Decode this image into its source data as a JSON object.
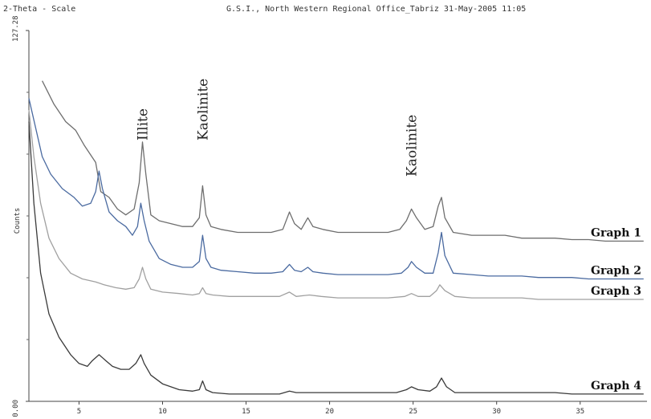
{
  "header": {
    "left": "2-Theta - Scale",
    "right": "G.S.I., North Western Regional Office_Tabriz 31-May-2005 11:05"
  },
  "chart_data": {
    "type": "line",
    "title": "",
    "xlabel": "2-Theta - Scale",
    "ylabel": "Counts",
    "xlim": [
      2,
      39
    ],
    "ylim": [
      0,
      127.28
    ],
    "xticks": [
      5,
      10,
      15,
      20,
      25,
      30,
      35
    ],
    "yticks": [
      {
        "value": 127.28,
        "label": "127.28"
      },
      {
        "value": 0,
        "label": "0.00"
      }
    ],
    "grid": false,
    "annotations": [
      {
        "text": "Illite",
        "x": 8.8
      },
      {
        "text": "Kaolinite",
        "x": 12.4
      },
      {
        "text": "Kaolinite",
        "x": 24.9
      }
    ],
    "series": [
      {
        "name": "Graph 1",
        "color": "#6e6e6e",
        "points": [
          [
            2.8,
            110
          ],
          [
            3.5,
            102
          ],
          [
            4.2,
            96
          ],
          [
            4.8,
            93
          ],
          [
            5.3,
            88
          ],
          [
            6.0,
            82
          ],
          [
            6.3,
            72
          ],
          [
            6.8,
            70
          ],
          [
            7.3,
            66
          ],
          [
            7.8,
            64
          ],
          [
            8.3,
            66
          ],
          [
            8.6,
            75
          ],
          [
            8.8,
            89
          ],
          [
            9.0,
            78
          ],
          [
            9.3,
            64
          ],
          [
            9.8,
            62
          ],
          [
            10.5,
            61
          ],
          [
            11.2,
            60
          ],
          [
            11.8,
            60
          ],
          [
            12.2,
            63
          ],
          [
            12.4,
            74
          ],
          [
            12.6,
            64
          ],
          [
            12.9,
            60
          ],
          [
            13.5,
            59
          ],
          [
            14.5,
            58
          ],
          [
            15.5,
            58
          ],
          [
            16.5,
            58
          ],
          [
            17.2,
            59
          ],
          [
            17.6,
            65
          ],
          [
            17.9,
            61
          ],
          [
            18.3,
            59
          ],
          [
            18.7,
            63
          ],
          [
            19.0,
            60
          ],
          [
            19.6,
            59
          ],
          [
            20.5,
            58
          ],
          [
            21.5,
            58
          ],
          [
            22.5,
            58
          ],
          [
            23.5,
            58
          ],
          [
            24.2,
            59
          ],
          [
            24.6,
            62
          ],
          [
            24.9,
            66
          ],
          [
            25.2,
            63
          ],
          [
            25.7,
            59
          ],
          [
            26.2,
            60
          ],
          [
            26.5,
            67
          ],
          [
            26.7,
            70
          ],
          [
            26.9,
            63
          ],
          [
            27.4,
            58
          ],
          [
            28.5,
            57
          ],
          [
            29.5,
            57
          ],
          [
            30.5,
            57
          ],
          [
            31.5,
            56
          ],
          [
            32.5,
            56
          ],
          [
            33.5,
            56
          ],
          [
            34.5,
            55.5
          ],
          [
            35.5,
            55.5
          ],
          [
            36.5,
            55
          ],
          [
            37.5,
            55
          ],
          [
            38.8,
            55
          ]
        ]
      },
      {
        "name": "Graph 2",
        "color": "#4a6aa0",
        "points": [
          [
            2.0,
            104
          ],
          [
            2.4,
            94
          ],
          [
            2.8,
            84
          ],
          [
            3.3,
            78
          ],
          [
            4.0,
            73
          ],
          [
            4.7,
            70
          ],
          [
            5.2,
            67
          ],
          [
            5.7,
            68
          ],
          [
            6.0,
            72
          ],
          [
            6.2,
            79
          ],
          [
            6.4,
            73
          ],
          [
            6.8,
            65
          ],
          [
            7.3,
            62
          ],
          [
            7.8,
            60
          ],
          [
            8.2,
            57
          ],
          [
            8.5,
            60
          ],
          [
            8.7,
            68
          ],
          [
            8.9,
            62
          ],
          [
            9.2,
            55
          ],
          [
            9.8,
            49
          ],
          [
            10.5,
            47
          ],
          [
            11.2,
            46
          ],
          [
            11.8,
            46
          ],
          [
            12.2,
            48
          ],
          [
            12.4,
            57
          ],
          [
            12.6,
            49
          ],
          [
            12.9,
            46
          ],
          [
            13.5,
            45
          ],
          [
            14.5,
            44.5
          ],
          [
            15.5,
            44
          ],
          [
            16.5,
            44
          ],
          [
            17.2,
            44.5
          ],
          [
            17.6,
            47
          ],
          [
            17.9,
            45
          ],
          [
            18.3,
            44.5
          ],
          [
            18.7,
            46
          ],
          [
            19.0,
            44.5
          ],
          [
            19.6,
            44
          ],
          [
            20.5,
            43.5
          ],
          [
            21.5,
            43.5
          ],
          [
            22.5,
            43.5
          ],
          [
            23.5,
            43.5
          ],
          [
            24.3,
            44
          ],
          [
            24.7,
            46
          ],
          [
            24.9,
            48
          ],
          [
            25.2,
            46
          ],
          [
            25.7,
            44
          ],
          [
            26.2,
            44
          ],
          [
            26.5,
            51
          ],
          [
            26.7,
            58
          ],
          [
            26.9,
            50
          ],
          [
            27.4,
            44
          ],
          [
            28.5,
            43.5
          ],
          [
            29.5,
            43
          ],
          [
            30.5,
            43
          ],
          [
            31.5,
            43
          ],
          [
            32.5,
            42.5
          ],
          [
            33.5,
            42.5
          ],
          [
            34.5,
            42.5
          ],
          [
            35.5,
            42
          ],
          [
            36.5,
            42
          ],
          [
            37.5,
            42
          ],
          [
            38.8,
            42
          ]
        ]
      },
      {
        "name": "Graph 3",
        "color": "#a0a0a0",
        "points": [
          [
            2.0,
            100
          ],
          [
            2.3,
            84
          ],
          [
            2.7,
            68
          ],
          [
            3.2,
            56
          ],
          [
            3.8,
            49
          ],
          [
            4.5,
            44
          ],
          [
            5.2,
            42
          ],
          [
            6.0,
            41
          ],
          [
            6.5,
            40
          ],
          [
            7.2,
            39
          ],
          [
            7.8,
            38.5
          ],
          [
            8.3,
            39
          ],
          [
            8.6,
            42
          ],
          [
            8.8,
            46
          ],
          [
            9.0,
            42
          ],
          [
            9.3,
            38.5
          ],
          [
            10.0,
            37.5
          ],
          [
            11.0,
            37
          ],
          [
            11.8,
            36.5
          ],
          [
            12.2,
            37
          ],
          [
            12.4,
            39
          ],
          [
            12.6,
            37
          ],
          [
            13.0,
            36.5
          ],
          [
            14.0,
            36
          ],
          [
            15.0,
            36
          ],
          [
            16.0,
            36
          ],
          [
            17.0,
            36
          ],
          [
            17.6,
            37.5
          ],
          [
            18.0,
            36
          ],
          [
            18.8,
            36.5
          ],
          [
            19.5,
            36
          ],
          [
            20.5,
            35.5
          ],
          [
            21.5,
            35.5
          ],
          [
            22.5,
            35.5
          ],
          [
            23.5,
            35.5
          ],
          [
            24.5,
            36
          ],
          [
            24.9,
            37
          ],
          [
            25.3,
            36
          ],
          [
            26.0,
            36
          ],
          [
            26.4,
            38
          ],
          [
            26.6,
            40
          ],
          [
            26.9,
            38
          ],
          [
            27.5,
            36
          ],
          [
            28.5,
            35.5
          ],
          [
            29.5,
            35.5
          ],
          [
            30.5,
            35.5
          ],
          [
            31.5,
            35.5
          ],
          [
            32.5,
            35
          ],
          [
            33.5,
            35
          ],
          [
            34.5,
            35
          ],
          [
            35.5,
            35
          ],
          [
            36.5,
            35
          ],
          [
            37.5,
            35
          ],
          [
            38.8,
            35
          ]
        ]
      },
      {
        "name": "Graph 4",
        "color": "#3a3a3a",
        "points": [
          [
            2.0,
            96
          ],
          [
            2.3,
            68
          ],
          [
            2.7,
            44
          ],
          [
            3.2,
            30
          ],
          [
            3.8,
            22
          ],
          [
            4.5,
            16
          ],
          [
            5.0,
            13
          ],
          [
            5.5,
            12
          ],
          [
            5.8,
            14
          ],
          [
            6.2,
            16
          ],
          [
            6.6,
            14
          ],
          [
            7.0,
            12
          ],
          [
            7.5,
            11
          ],
          [
            8.0,
            11
          ],
          [
            8.4,
            13
          ],
          [
            8.7,
            16
          ],
          [
            8.9,
            13
          ],
          [
            9.3,
            9
          ],
          [
            10.0,
            6
          ],
          [
            11.0,
            4
          ],
          [
            11.8,
            3.5
          ],
          [
            12.2,
            4
          ],
          [
            12.4,
            7
          ],
          [
            12.6,
            4
          ],
          [
            13.0,
            3
          ],
          [
            14.0,
            2.5
          ],
          [
            15.0,
            2.5
          ],
          [
            16.0,
            2.5
          ],
          [
            17.0,
            2.5
          ],
          [
            17.6,
            3.5
          ],
          [
            18.0,
            3
          ],
          [
            19.0,
            3
          ],
          [
            20.0,
            3
          ],
          [
            21.0,
            3
          ],
          [
            22.0,
            3
          ],
          [
            23.0,
            3
          ],
          [
            24.0,
            3
          ],
          [
            24.6,
            4
          ],
          [
            24.9,
            5
          ],
          [
            25.3,
            4
          ],
          [
            26.0,
            3.5
          ],
          [
            26.4,
            5
          ],
          [
            26.7,
            8
          ],
          [
            27.0,
            5
          ],
          [
            27.5,
            3
          ],
          [
            28.5,
            3
          ],
          [
            29.5,
            3
          ],
          [
            30.5,
            3
          ],
          [
            31.5,
            3
          ],
          [
            32.5,
            3
          ],
          [
            33.5,
            3
          ],
          [
            34.5,
            2.5
          ],
          [
            35.5,
            2.5
          ],
          [
            36.5,
            2.5
          ],
          [
            37.5,
            2.5
          ],
          [
            38.8,
            2.5
          ]
        ]
      }
    ]
  }
}
